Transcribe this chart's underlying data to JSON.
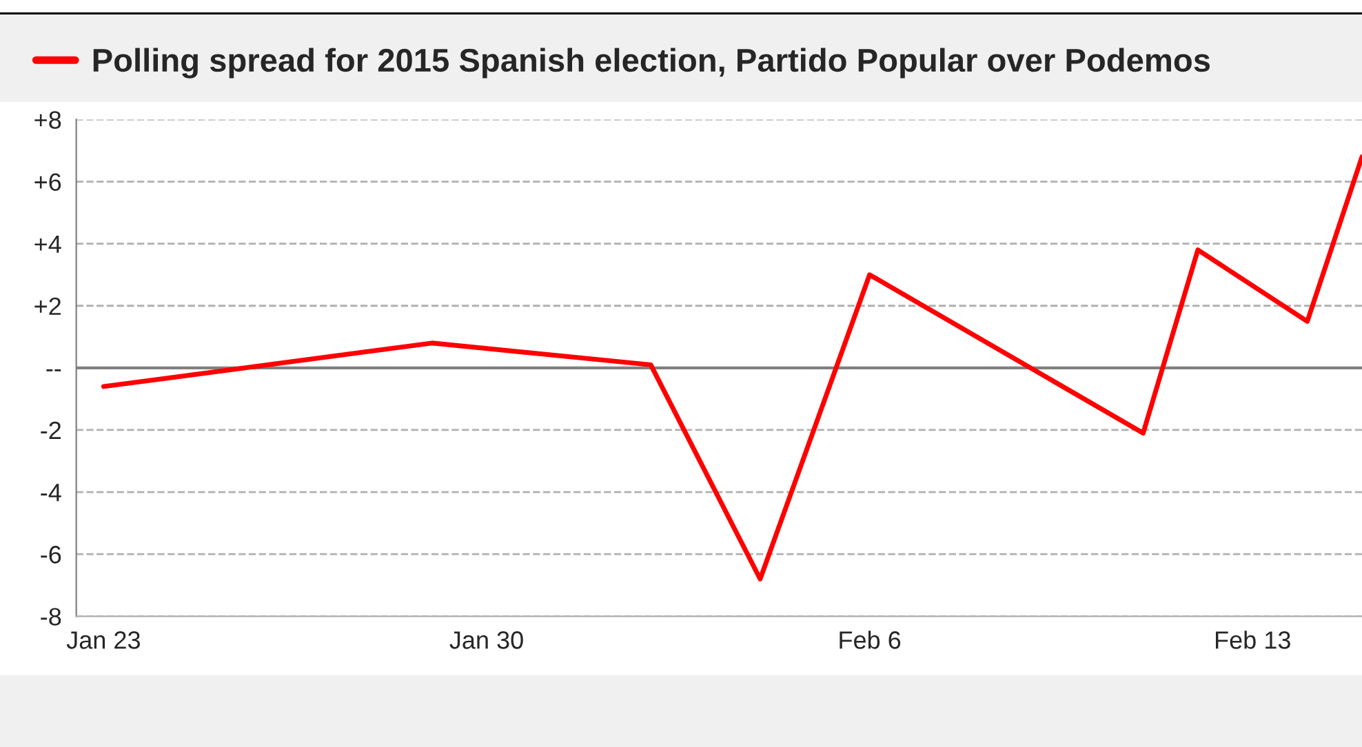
{
  "chart_data": {
    "type": "line",
    "x": [
      "2015-01-23",
      "2015-01-29",
      "2015-02-02",
      "2015-02-04",
      "2015-02-06",
      "2015-02-11",
      "2015-02-12",
      "2015-02-14",
      "2015-02-15"
    ],
    "series": [
      {
        "name": "Polling spread for 2015 Spanish election, Partido Popular over Podemos",
        "color": "#ff0000",
        "values": [
          -0.6,
          0.8,
          0.1,
          -6.8,
          3.0,
          -2.1,
          3.8,
          1.5,
          6.8
        ]
      }
    ],
    "xlim": [
      "2015-01-22T12:00",
      "2015-02-15"
    ],
    "xticks": [
      {
        "value": "2015-01-23",
        "label": "Jan 23"
      },
      {
        "value": "2015-01-30",
        "label": "Jan 30"
      },
      {
        "value": "2015-02-06",
        "label": "Feb 6"
      },
      {
        "value": "2015-02-13",
        "label": "Feb 13"
      }
    ],
    "ylim": [
      -8,
      8
    ],
    "yticks": [
      {
        "value": 8,
        "label": "+8"
      },
      {
        "value": 6,
        "label": "+6"
      },
      {
        "value": 4,
        "label": "+4"
      },
      {
        "value": 2,
        "label": "+2"
      },
      {
        "value": 0,
        "label": "--"
      },
      {
        "value": -2,
        "label": "-2"
      },
      {
        "value": -4,
        "label": "-4"
      },
      {
        "value": -6,
        "label": "-6"
      },
      {
        "value": -8,
        "label": "-8"
      }
    ],
    "ref_lines": [
      {
        "axis": "y",
        "value": 0,
        "color": "#808080",
        "line_style": "solid"
      }
    ],
    "grid": "y",
    "legend": "top left",
    "line_style": "solid",
    "marker": "none"
  }
}
